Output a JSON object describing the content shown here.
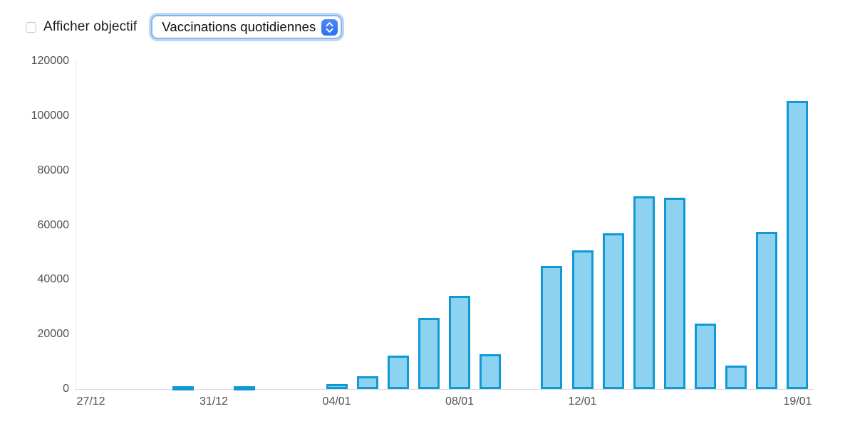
{
  "controls": {
    "checkbox_label": "Afficher objectif",
    "checkbox_checked": false,
    "select_value": "Vaccinations quotidiennes"
  },
  "chart_data": {
    "type": "bar",
    "title": "",
    "xlabel": "",
    "ylabel": "",
    "categories": [
      "27/12",
      "28/12",
      "29/12",
      "30/12",
      "31/12",
      "01/01",
      "02/01",
      "03/01",
      "04/01",
      "05/01",
      "06/01",
      "07/01",
      "08/01",
      "09/01",
      "10/01",
      "11/01",
      "12/01",
      "13/01",
      "14/01",
      "15/01",
      "16/01",
      "17/01",
      "18/01",
      "19/01"
    ],
    "values": [
      0,
      0,
      0,
      500,
      0,
      500,
      0,
      0,
      1700,
      4600,
      12200,
      26000,
      34000,
      12700,
      0,
      45000,
      50800,
      57000,
      70500,
      70000,
      23900,
      8700,
      57400,
      105500
    ],
    "x_tick_labels": [
      {
        "index": 0,
        "label": "27/12"
      },
      {
        "index": 4,
        "label": "31/12"
      },
      {
        "index": 8,
        "label": "04/01"
      },
      {
        "index": 12,
        "label": "08/01"
      },
      {
        "index": 16,
        "label": "12/01"
      },
      {
        "index": 23,
        "label": "19/01"
      }
    ],
    "y_ticks": [
      0,
      20000,
      40000,
      60000,
      80000,
      100000,
      120000
    ],
    "ylim": [
      0,
      120000
    ],
    "grid": false,
    "legend": "none",
    "bar_fill_color": "#8dd3f1",
    "bar_border_color": "#0f9ad6"
  }
}
